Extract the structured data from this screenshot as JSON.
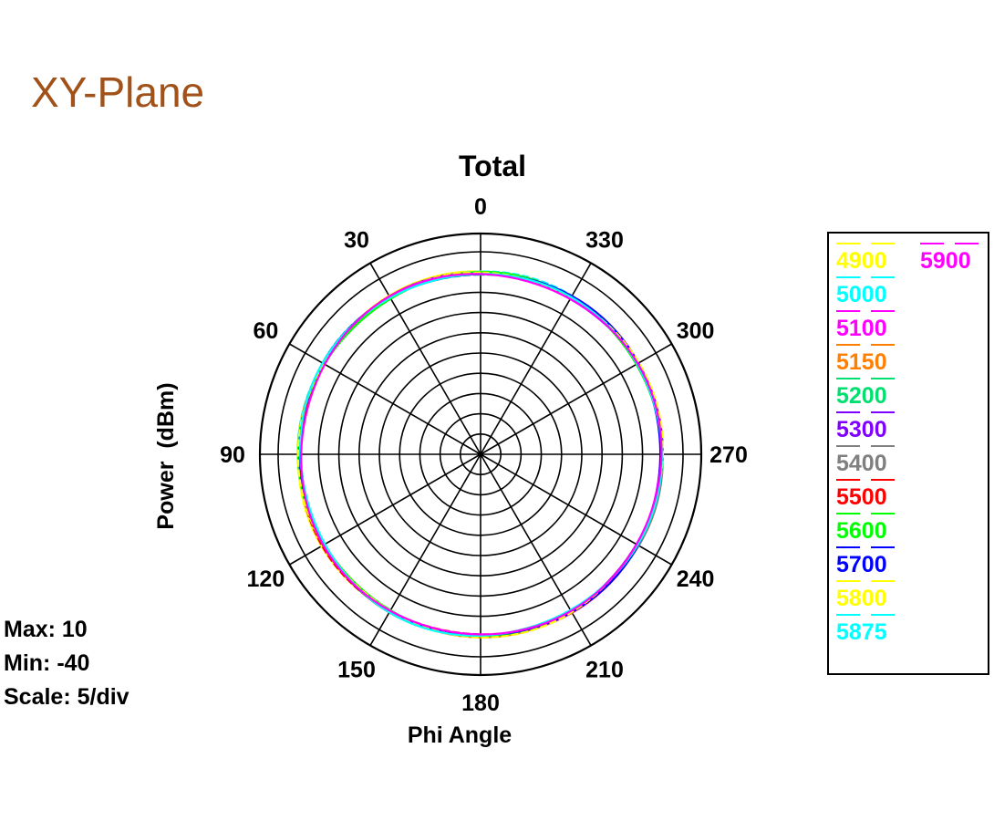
{
  "page_title": "XY-Plane",
  "stats": {
    "max": "Max: 10",
    "min": "Min: -40",
    "scale": "Scale: 5/div"
  },
  "chart_data": {
    "type": "polar-line",
    "title": "Total",
    "radial_label": "Power  (dBm)",
    "angular_label": "Phi Angle",
    "r_range": [
      -40,
      10
    ],
    "r_step": 5,
    "grid": true,
    "angle_direction": "counterclockwise",
    "zero_at": "top",
    "angle_ticks": [
      "0",
      "30",
      "60",
      "90",
      "120",
      "150",
      "180",
      "210",
      "240",
      "270",
      "300",
      "330"
    ],
    "legend_position": "right",
    "series": [
      {
        "name": "4900",
        "color": "#ffff00",
        "value_dBm": 5.0
      },
      {
        "name": "5000",
        "color": "#00ffff",
        "value_dBm": 4.9
      },
      {
        "name": "5100",
        "color": "#ff00ff",
        "value_dBm": 4.8
      },
      {
        "name": "5150",
        "color": "#ff8000",
        "value_dBm": 4.8
      },
      {
        "name": "5200",
        "color": "#00e070",
        "value_dBm": 4.7
      },
      {
        "name": "5300",
        "color": "#8000ff",
        "value_dBm": 4.7
      },
      {
        "name": "5400",
        "color": "#808080",
        "value_dBm": 4.8
      },
      {
        "name": "5500",
        "color": "#ff0000",
        "value_dBm": 4.8
      },
      {
        "name": "5600",
        "color": "#00ff00",
        "value_dBm": 4.7
      },
      {
        "name": "5700",
        "color": "#0000ff",
        "value_dBm": 4.8
      },
      {
        "name": "5800",
        "color": "#ffff00",
        "value_dBm": 4.9
      },
      {
        "name": "5875",
        "color": "#00ffff",
        "value_dBm": 4.7
      },
      {
        "name": "5900",
        "color": "#ff00ff",
        "value_dBm": 4.6
      }
    ]
  }
}
